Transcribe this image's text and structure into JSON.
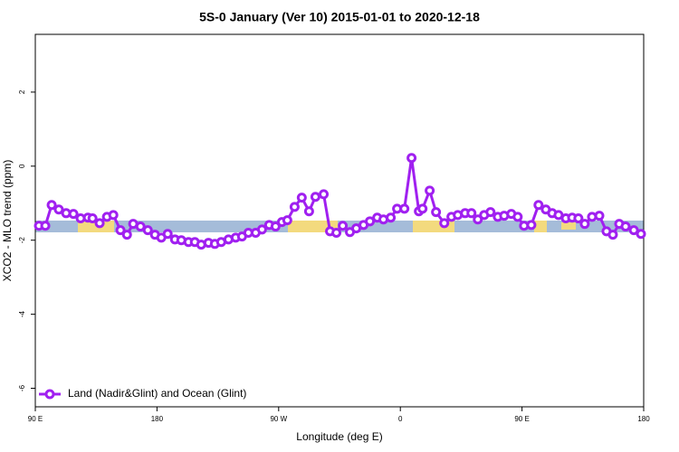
{
  "chart_data": {
    "type": "line",
    "title": "5S-0 January (Ver 10)   2015-01-01 to 2020-12-18",
    "x_label": "Longitude (deg E)",
    "y_label": "XCO2 - MLO trend (ppm)",
    "xlim": [
      90,
      540
    ],
    "ylim": [
      -6.5,
      3.56
    ],
    "xticks": [
      {
        "value": 90,
        "label": "90 E"
      },
      180,
      {
        "value": 270,
        "label": "90 W"
      },
      {
        "value": 360,
        "label": "0"
      },
      {
        "value": 450,
        "label": "90 E"
      },
      {
        "value": 540,
        "label": "180"
      }
    ],
    "yticks": [
      2,
      0,
      -2,
      -4,
      -6
    ],
    "legend": "bottom-left",
    "x": [
      92.7,
      97.4,
      102.1,
      107.4,
      112.8,
      118.2,
      123.5,
      128.9,
      132.3,
      137.6,
      143.0,
      147.7,
      153.0,
      157.8,
      162.4,
      167.8,
      173.2,
      178.5,
      183.2,
      187.9,
      193.3,
      198.0,
      203.3,
      208.0,
      212.7,
      218.1,
      222.8,
      227.5,
      232.9,
      238.2,
      242.9,
      247.6,
      253.0,
      257.7,
      263.0,
      267.7,
      272.4,
      276.4,
      281.8,
      287.1,
      292.5,
      297.2,
      303.3,
      308.0,
      312.7,
      317.4,
      322.7,
      327.4,
      332.8,
      337.5,
      342.9,
      347.5,
      352.9,
      357.6,
      363.0,
      368.3,
      373.7,
      376.4,
      381.7,
      386.4,
      392.5,
      397.8,
      402.5,
      407.9,
      412.6,
      417.3,
      422.0,
      426.7,
      432.1,
      436.8,
      442.1,
      446.8,
      451.5,
      456.9,
      462.2,
      467.6,
      472.3,
      477.0,
      482.4,
      487.1,
      491.7,
      496.4,
      501.8,
      507.2,
      512.5,
      517.2,
      521.9,
      526.6,
      532.7,
      538.0
    ],
    "series": [
      {
        "name": "Land (Nadir&Glint) and Ocean (Glint)",
        "color": "#a020f0",
        "values": [
          -1.61,
          -1.61,
          -1.05,
          -1.17,
          -1.27,
          -1.29,
          -1.41,
          -1.39,
          -1.41,
          -1.54,
          -1.37,
          -1.32,
          -1.73,
          -1.85,
          -1.56,
          -1.63,
          -1.73,
          -1.85,
          -1.93,
          -1.83,
          -1.98,
          -2.0,
          -2.05,
          -2.05,
          -2.12,
          -2.07,
          -2.1,
          -2.05,
          -1.98,
          -1.93,
          -1.9,
          -1.8,
          -1.8,
          -1.71,
          -1.59,
          -1.63,
          -1.51,
          -1.46,
          -1.1,
          -0.85,
          -1.22,
          -0.83,
          -0.76,
          -1.76,
          -1.8,
          -1.61,
          -1.78,
          -1.68,
          -1.59,
          -1.49,
          -1.39,
          -1.44,
          -1.39,
          -1.15,
          -1.15,
          0.22,
          -1.22,
          -1.15,
          -0.66,
          -1.24,
          -1.54,
          -1.37,
          -1.32,
          -1.27,
          -1.27,
          -1.44,
          -1.32,
          -1.24,
          -1.37,
          -1.34,
          -1.29,
          -1.37,
          -1.61,
          -1.59,
          -1.05,
          -1.17,
          -1.27,
          -1.32,
          -1.41,
          -1.39,
          -1.41,
          -1.56,
          -1.37,
          -1.34,
          -1.76,
          -1.85,
          -1.56,
          -1.63,
          -1.73,
          -1.83
        ]
      }
    ]
  }
}
